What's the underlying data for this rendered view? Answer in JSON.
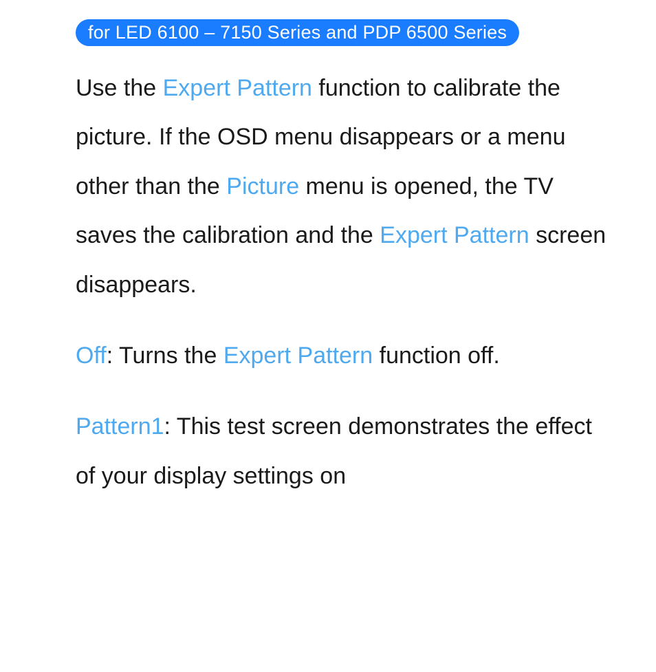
{
  "badge": {
    "text": "for LED 6100 – 7150 Series and PDP 6500 Series",
    "bg_color": "#1a7cff",
    "text_color": "#ffffff",
    "font_size": 27
  },
  "content": {
    "font_size": 34,
    "line_height": 2.1,
    "text_color": "#1a1a1a",
    "highlight_color": "#4fa9ef"
  },
  "p1": {
    "s1": "Use the ",
    "h1": "Expert Pattern",
    "s2": " function to calibrate the picture. If the OSD menu disappears or a menu other than the ",
    "h2": "Picture",
    "s3": " menu is opened, the TV saves the calibration and the ",
    "h3": "Expert Pattern",
    "s4": " screen disappears."
  },
  "p2": {
    "h1": "Off",
    "s1": ": Turns the ",
    "h2": "Expert Pattern",
    "s2": " function off."
  },
  "p3": {
    "h1": "Pattern1",
    "s1": ": This test screen demonstrates the effect of your display settings on"
  }
}
